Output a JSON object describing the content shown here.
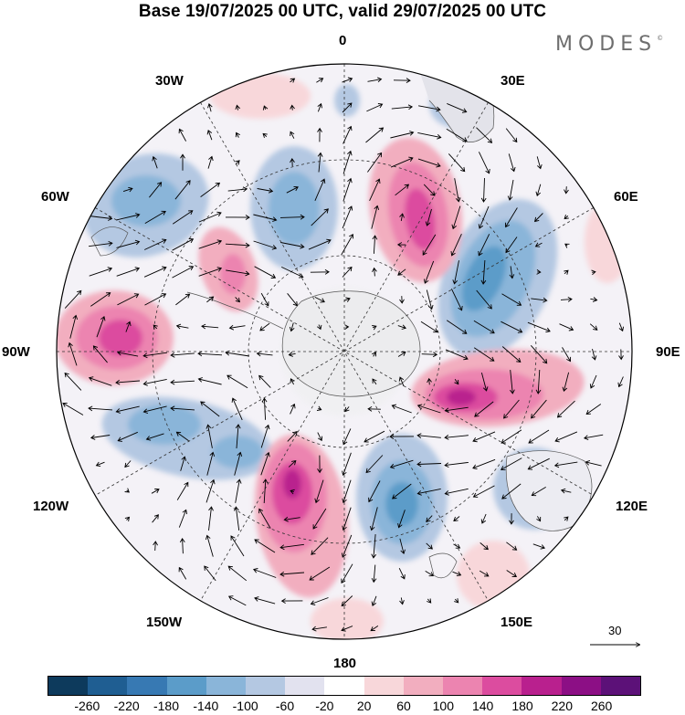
{
  "title": "Base 19/07/2025 00 UTC, valid 29/07/2025 00 UTC",
  "logo": {
    "text": "MODES",
    "mark": "©"
  },
  "longitude_labels": {
    "top": "0",
    "e30": "30E",
    "e60": "60E",
    "e90": "90E",
    "e120": "120E",
    "e150": "150E",
    "bottom": "180",
    "w150": "150W",
    "w120": "120W",
    "w90": "90W",
    "w60": "60W",
    "w30": "30W"
  },
  "reference_vector": {
    "value": "30"
  },
  "colorbar": {
    "colors": [
      "#0d3a5c",
      "#1f5e92",
      "#3779b3",
      "#5b9cc9",
      "#8ab5d9",
      "#b4c8e2",
      "#e2e2ef",
      "#ffffff",
      "#f8d7da",
      "#f2aebf",
      "#ec84b0",
      "#dc4c9f",
      "#b9208e",
      "#8c0f85",
      "#5c1178"
    ],
    "ticks": [
      "-260",
      "-220",
      "-180",
      "-140",
      "-100",
      "-60",
      "-20",
      "20",
      "60",
      "100",
      "140",
      "180",
      "220",
      "260"
    ]
  }
}
